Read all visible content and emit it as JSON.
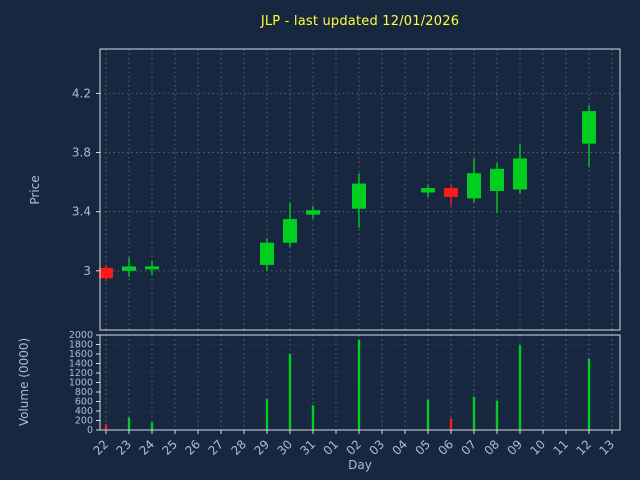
{
  "colors": {
    "background": "#172740",
    "text": "#a9bdd6",
    "title": "#ffff38",
    "grid": "#8494ab",
    "spine": "#d4dde8"
  },
  "chart_data": {
    "type": "candlestick",
    "title": "JLP - last updated 12/01/2026",
    "xlabel": "Day",
    "price_axis_label": "Price",
    "volume_axis_label": "Volume (0000)",
    "x_tick_labels": [
      "22",
      "23",
      "24",
      "25",
      "26",
      "27",
      "28",
      "29",
      "30",
      "31",
      "01",
      "02",
      "03",
      "04",
      "05",
      "06",
      "07",
      "08",
      "09",
      "10",
      "11",
      "12",
      "13"
    ],
    "price_ticks": [
      3,
      3.4,
      3.8,
      4.2
    ],
    "price_range": [
      2.6,
      4.5
    ],
    "volume_ticks": [
      0,
      200,
      400,
      600,
      800,
      1000,
      1200,
      1400,
      1600,
      1800,
      2000
    ],
    "volume_range": [
      0,
      2000
    ],
    "grid": true,
    "legend": "none",
    "up_color": "#00cf20",
    "down_color": "#ff1a1a",
    "candles": [
      {
        "day": "22",
        "open": 3.02,
        "high": 3.04,
        "low": 2.93,
        "close": 2.95,
        "volume": 120
      },
      {
        "day": "23",
        "open": 3.0,
        "high": 3.09,
        "low": 2.96,
        "close": 3.03,
        "volume": 260
      },
      {
        "day": "24",
        "open": 3.01,
        "high": 3.07,
        "low": 2.97,
        "close": 3.03,
        "volume": 160
      },
      {
        "day": "29",
        "open": 3.04,
        "high": 3.22,
        "low": 3.0,
        "close": 3.19,
        "volume": 650
      },
      {
        "day": "30",
        "open": 3.19,
        "high": 3.46,
        "low": 3.16,
        "close": 3.35,
        "volume": 1600
      },
      {
        "day": "31",
        "open": 3.38,
        "high": 3.44,
        "low": 3.35,
        "close": 3.41,
        "volume": 520
      },
      {
        "day": "02",
        "open": 3.42,
        "high": 3.66,
        "low": 3.29,
        "close": 3.59,
        "volume": 1900
      },
      {
        "day": "05",
        "open": 3.53,
        "high": 3.58,
        "low": 3.5,
        "close": 3.56,
        "volume": 640
      },
      {
        "day": "06",
        "open": 3.56,
        "high": 3.58,
        "low": 3.44,
        "close": 3.5,
        "volume": 240
      },
      {
        "day": "07",
        "open": 3.49,
        "high": 3.76,
        "low": 3.46,
        "close": 3.66,
        "volume": 700
      },
      {
        "day": "08",
        "open": 3.54,
        "high": 3.73,
        "low": 3.39,
        "close": 3.69,
        "volume": 620
      },
      {
        "day": "09",
        "open": 3.55,
        "high": 3.86,
        "low": 3.52,
        "close": 3.76,
        "volume": 1780
      },
      {
        "day": "12",
        "open": 3.86,
        "high": 4.12,
        "low": 3.7,
        "close": 4.08,
        "volume": 1500
      }
    ]
  }
}
